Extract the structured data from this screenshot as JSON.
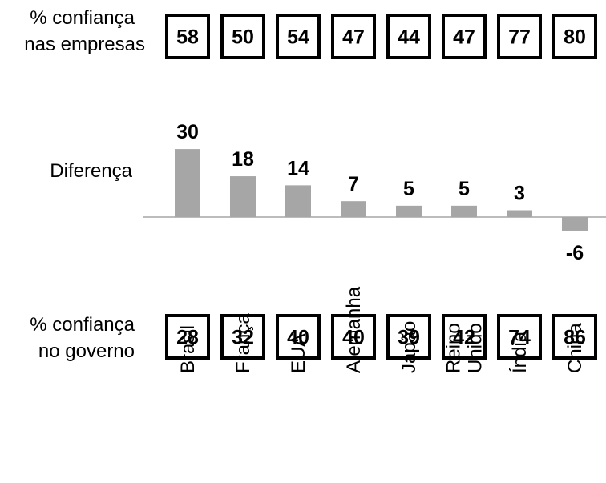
{
  "chart_data": {
    "type": "bar",
    "categories": [
      "Brasil",
      "França",
      "EUA",
      "Alemanha",
      "Japão",
      "Reino Unido",
      "Índia",
      "China"
    ],
    "category_lines": [
      [
        "Brasil"
      ],
      [
        "França"
      ],
      [
        "EUA"
      ],
      [
        "Alemanha"
      ],
      [
        "Japão"
      ],
      [
        "Reino",
        "Unido"
      ],
      [
        "Índia"
      ],
      [
        "China"
      ]
    ],
    "business_trust": {
      "label_lines": [
        "% confiança",
        "nas empresas"
      ],
      "values": [
        58,
        50,
        54,
        47,
        44,
        47,
        77,
        80
      ]
    },
    "difference": {
      "label": "Diferença",
      "values": [
        30,
        18,
        14,
        7,
        5,
        5,
        3,
        -6
      ],
      "bar_color": "#a6a6a6",
      "baseline_color": "#a6a6a6"
    },
    "government_trust": {
      "label_lines": [
        "% confiança",
        "no governo"
      ],
      "values": [
        28,
        32,
        40,
        40,
        39,
        42,
        74,
        86
      ]
    }
  }
}
